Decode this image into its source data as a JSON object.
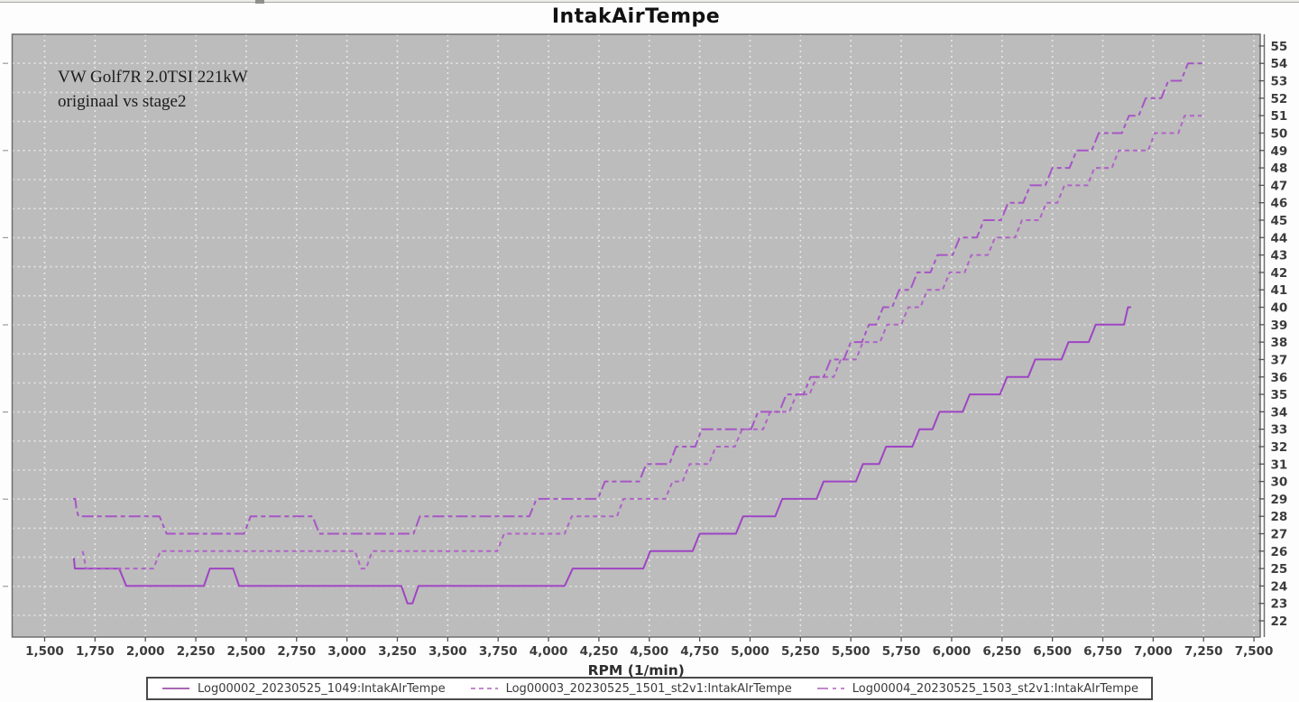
{
  "chart": {
    "title": "IntakAirTempe",
    "annotation_line1": "VW Golf7R 2.0TSI 221kW",
    "annotation_line2": "originaal vs stage2",
    "x_axis_title": "RPM (1/min)"
  },
  "colors": {
    "plot_background": "#bcbcbc",
    "grid": "#e9e9e9",
    "axis": "#6e6e6e",
    "series_solid": "#9e44c4",
    "series_dashed": "#b163c8",
    "series_dashdot": "#a755c6"
  },
  "chart_data": {
    "type": "line",
    "title": "IntakAirTempe",
    "xlabel": "RPM (1/min)",
    "ylabel": "",
    "xlim": [
      1339,
      7531
    ],
    "ylim": [
      21.07,
      55.67
    ],
    "grid": "white dotted grid on gray panel",
    "legend_position": "bottom",
    "x_tick_values": [
      1500,
      1750,
      2000,
      2250,
      2500,
      2750,
      3000,
      3250,
      3500,
      3750,
      4000,
      4250,
      4500,
      4750,
      5000,
      5250,
      5500,
      5750,
      6000,
      6250,
      6500,
      6750,
      7000,
      7250,
      7500
    ],
    "x_tick_labels": [
      "1,500",
      "1,750",
      "2,000",
      "2,250",
      "2,500",
      "2,750",
      "3,000",
      "3,250",
      "3,500",
      "3,750",
      "4,000",
      "4,250",
      "4,500",
      "4,750",
      "5,000",
      "5,250",
      "5,500",
      "5,750",
      "6,000",
      "6,250",
      "6,500",
      "6,750",
      "7,000",
      "7,250",
      "7,500"
    ],
    "y_tick_values": [
      22,
      23,
      24,
      25,
      26,
      27,
      28,
      29,
      30,
      31,
      32,
      33,
      34,
      35,
      36,
      37,
      38,
      39,
      40,
      41,
      42,
      43,
      44,
      45,
      46,
      47,
      48,
      49,
      50,
      51,
      52,
      53,
      54,
      55
    ],
    "series": [
      {
        "name": "Log00002_20230525_1049:IntakAIrTempe",
        "style": "solid",
        "color": "#9e44c4",
        "points": [
          [
            1645,
            25.6
          ],
          [
            1650,
            25
          ],
          [
            1870,
            25
          ],
          [
            1905,
            24
          ],
          [
            2290,
            24
          ],
          [
            2320,
            25
          ],
          [
            2435,
            25
          ],
          [
            2465,
            24
          ],
          [
            3270,
            24
          ],
          [
            3300,
            23
          ],
          [
            3325,
            23
          ],
          [
            3355,
            24
          ],
          [
            4080,
            24
          ],
          [
            4120,
            25
          ],
          [
            4470,
            25
          ],
          [
            4505,
            26
          ],
          [
            4715,
            26
          ],
          [
            4750,
            27
          ],
          [
            4930,
            27
          ],
          [
            4965,
            28
          ],
          [
            5125,
            28
          ],
          [
            5160,
            29
          ],
          [
            5330,
            29
          ],
          [
            5365,
            30
          ],
          [
            5525,
            30
          ],
          [
            5560,
            31
          ],
          [
            5640,
            31
          ],
          [
            5675,
            32
          ],
          [
            5805,
            32
          ],
          [
            5840,
            33
          ],
          [
            5905,
            33
          ],
          [
            5940,
            34
          ],
          [
            6055,
            34
          ],
          [
            6090,
            35
          ],
          [
            6240,
            35
          ],
          [
            6275,
            36
          ],
          [
            6380,
            36
          ],
          [
            6415,
            37
          ],
          [
            6545,
            37
          ],
          [
            6580,
            38
          ],
          [
            6680,
            38
          ],
          [
            6715,
            39
          ],
          [
            6855,
            39
          ],
          [
            6875,
            40
          ],
          [
            6890,
            40
          ]
        ]
      },
      {
        "name": "Log00003_20230525_1501_st2v1:IntakAIrTempe",
        "style": "dashed",
        "color": "#b163c8",
        "points": [
          [
            1688,
            26
          ],
          [
            1695,
            25.7
          ],
          [
            1705,
            25
          ],
          [
            2040,
            25
          ],
          [
            2075,
            26
          ],
          [
            3040,
            26
          ],
          [
            3070,
            25
          ],
          [
            3095,
            25
          ],
          [
            3125,
            26
          ],
          [
            3745,
            26
          ],
          [
            3780,
            27
          ],
          [
            4080,
            27
          ],
          [
            4115,
            28
          ],
          [
            4340,
            28
          ],
          [
            4372,
            29
          ],
          [
            4580,
            29
          ],
          [
            4615,
            30
          ],
          [
            4665,
            30
          ],
          [
            4700,
            31
          ],
          [
            4795,
            31
          ],
          [
            4830,
            32
          ],
          [
            4925,
            32
          ],
          [
            4960,
            33
          ],
          [
            5065,
            33
          ],
          [
            5100,
            34
          ],
          [
            5195,
            34
          ],
          [
            5230,
            35
          ],
          [
            5295,
            35
          ],
          [
            5330,
            36
          ],
          [
            5415,
            36
          ],
          [
            5450,
            37
          ],
          [
            5525,
            37
          ],
          [
            5560,
            38
          ],
          [
            5645,
            38
          ],
          [
            5680,
            39
          ],
          [
            5750,
            39
          ],
          [
            5785,
            40
          ],
          [
            5845,
            40
          ],
          [
            5880,
            41
          ],
          [
            5955,
            41
          ],
          [
            5990,
            42
          ],
          [
            6065,
            42
          ],
          [
            6098,
            43
          ],
          [
            6180,
            43
          ],
          [
            6215,
            44
          ],
          [
            6315,
            44
          ],
          [
            6349,
            45
          ],
          [
            6435,
            45
          ],
          [
            6470,
            46
          ],
          [
            6525,
            46
          ],
          [
            6560,
            47
          ],
          [
            6675,
            47
          ],
          [
            6708,
            48
          ],
          [
            6795,
            48
          ],
          [
            6829,
            49
          ],
          [
            6975,
            49
          ],
          [
            7008,
            50
          ],
          [
            7125,
            50
          ],
          [
            7156,
            51
          ],
          [
            7240,
            51
          ]
        ]
      },
      {
        "name": "Log00004_20230525_1503_st2v1:IntakAIrTempe",
        "style": "dashdot",
        "color": "#a755c6",
        "points": [
          [
            1640,
            29
          ],
          [
            1652,
            29
          ],
          [
            1658,
            28.4
          ],
          [
            1668,
            28
          ],
          [
            2070,
            28
          ],
          [
            2105,
            27
          ],
          [
            2490,
            27
          ],
          [
            2522,
            28
          ],
          [
            2830,
            28
          ],
          [
            2862,
            27
          ],
          [
            3330,
            27
          ],
          [
            3362,
            28
          ],
          [
            3905,
            28
          ],
          [
            3940,
            29
          ],
          [
            4245,
            29
          ],
          [
            4280,
            30
          ],
          [
            4450,
            30
          ],
          [
            4485,
            31
          ],
          [
            4600,
            31
          ],
          [
            4633,
            32
          ],
          [
            4728,
            32
          ],
          [
            4760,
            33
          ],
          [
            5005,
            33
          ],
          [
            5040,
            34
          ],
          [
            5145,
            34
          ],
          [
            5180,
            35
          ],
          [
            5265,
            35
          ],
          [
            5300,
            36
          ],
          [
            5365,
            36
          ],
          [
            5400,
            37
          ],
          [
            5465,
            37
          ],
          [
            5500,
            38
          ],
          [
            5555,
            38
          ],
          [
            5590,
            39
          ],
          [
            5625,
            39
          ],
          [
            5660,
            40
          ],
          [
            5705,
            40
          ],
          [
            5740,
            41
          ],
          [
            5795,
            41
          ],
          [
            5830,
            42
          ],
          [
            5895,
            42
          ],
          [
            5930,
            43
          ],
          [
            6005,
            43
          ],
          [
            6040,
            44
          ],
          [
            6125,
            44
          ],
          [
            6160,
            45
          ],
          [
            6245,
            45
          ],
          [
            6280,
            46
          ],
          [
            6355,
            46
          ],
          [
            6390,
            47
          ],
          [
            6465,
            47
          ],
          [
            6500,
            48
          ],
          [
            6585,
            48
          ],
          [
            6620,
            49
          ],
          [
            6695,
            49
          ],
          [
            6730,
            50
          ],
          [
            6845,
            50
          ],
          [
            6880,
            51
          ],
          [
            6928,
            51
          ],
          [
            6963,
            52
          ],
          [
            7040,
            52
          ],
          [
            7075,
            53
          ],
          [
            7138,
            53
          ],
          [
            7173,
            54
          ],
          [
            7250,
            54
          ]
        ]
      }
    ]
  }
}
